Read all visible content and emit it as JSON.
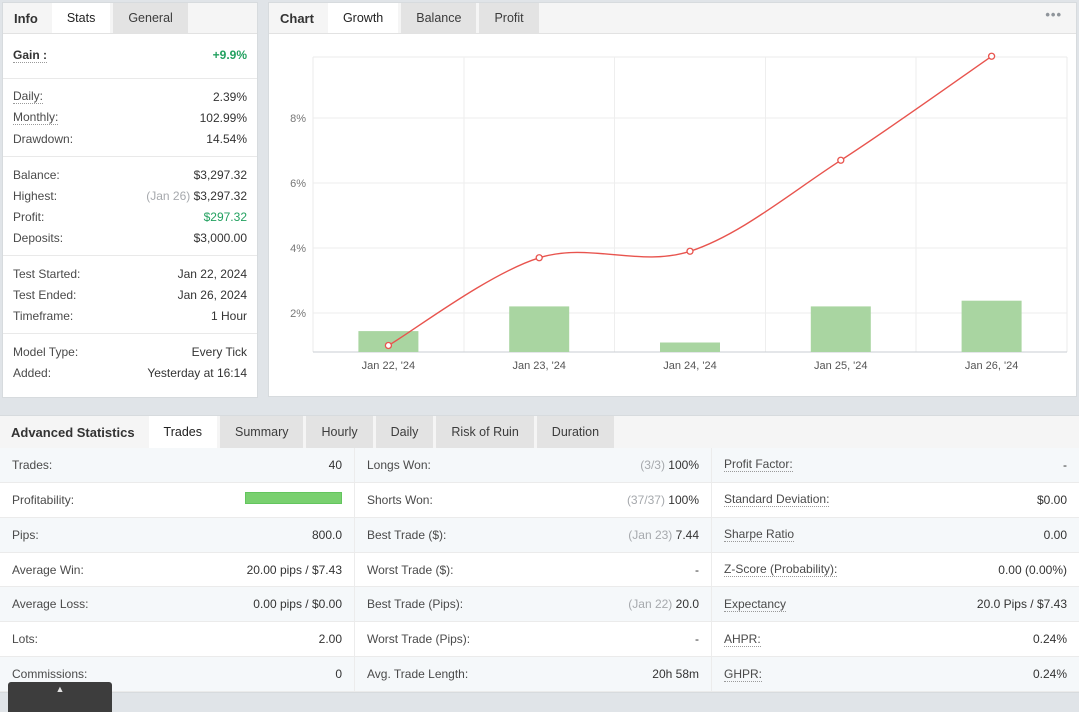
{
  "colors": {
    "green": "#23a160",
    "red_line": "#e8544e",
    "bar_green": "#a9d5a1",
    "profit_bar": "#79d06f"
  },
  "info_panel": {
    "section_label": "Info",
    "tabs": [
      {
        "label": "Stats",
        "active": true
      },
      {
        "label": "General",
        "active": false
      }
    ],
    "groups": [
      [
        {
          "label": "Gain :",
          "value": "+9.9%",
          "dotted": true,
          "green": true,
          "bold": true
        }
      ],
      [
        {
          "label": "Daily:",
          "value": "2.39%",
          "dotted": true
        },
        {
          "label": "Monthly:",
          "value": "102.99%",
          "dotted": true
        },
        {
          "label": "Drawdown:",
          "value": "14.54%"
        }
      ],
      [
        {
          "label": "Balance:",
          "value": "$3,297.32"
        },
        {
          "label": "Highest:",
          "prefix": "(Jan 26)",
          "value": "$3,297.32"
        },
        {
          "label": "Profit:",
          "value": "$297.32",
          "green": true
        },
        {
          "label": "Deposits:",
          "value": "$3,000.00"
        }
      ],
      [
        {
          "label": "Test Started:",
          "value": "Jan 22, 2024"
        },
        {
          "label": "Test Ended:",
          "value": "Jan 26, 2024"
        },
        {
          "label": "Timeframe:",
          "value": "1 Hour"
        }
      ],
      [
        {
          "label": "Model Type:",
          "value": "Every Tick"
        },
        {
          "label": "Added:",
          "value": "Yesterday at 16:14"
        }
      ]
    ]
  },
  "chart_panel": {
    "section_label": "Chart",
    "tabs": [
      {
        "label": "Growth",
        "active": true
      },
      {
        "label": "Balance",
        "active": false
      },
      {
        "label": "Profit",
        "active": false
      }
    ]
  },
  "chart_data": {
    "type": "bar+line combo",
    "title": "Growth",
    "x": [
      "Jan 22, '24",
      "Jan 23, '24",
      "Jan 24, '24",
      "Jan 25, '24",
      "Jan 26, '24"
    ],
    "series": [
      {
        "name": "daily-gain-bars",
        "type": "bar",
        "values": [
          1.1,
          2.4,
          0.5,
          2.4,
          2.7
        ]
      },
      {
        "name": "cumulative-growth-line",
        "type": "line",
        "values": [
          1.0,
          3.7,
          3.9,
          6.7,
          9.9
        ]
      }
    ],
    "yticks": [
      "2%",
      "4%",
      "6%",
      "8%"
    ],
    "ytick_values": [
      2,
      4,
      6,
      8
    ],
    "ylim": [
      0.8,
      9.9
    ],
    "grid": true,
    "legend": "none"
  },
  "stats_panel": {
    "section_label": "Advanced Statistics",
    "tabs": [
      {
        "label": "Trades",
        "active": true
      },
      {
        "label": "Summary",
        "active": false
      },
      {
        "label": "Hourly",
        "active": false
      },
      {
        "label": "Daily",
        "active": false
      },
      {
        "label": "Risk of Ruin",
        "active": false
      },
      {
        "label": "Duration",
        "active": false
      }
    ],
    "rows": [
      [
        {
          "label": "Trades:",
          "value": "40"
        },
        {
          "label": "Longs Won:",
          "prefix": "(3/3)",
          "value": "100%"
        },
        {
          "label": "Profit Factor:",
          "dotted": true,
          "value": "-"
        }
      ],
      [
        {
          "label": "Profitability:",
          "bar": true
        },
        {
          "label": "Shorts Won:",
          "prefix": "(37/37)",
          "value": "100%"
        },
        {
          "label": "Standard Deviation:",
          "dotted": true,
          "value": "$0.00"
        }
      ],
      [
        {
          "label": "Pips:",
          "value": "800.0"
        },
        {
          "label": "Best Trade ($):",
          "prefix": "(Jan 23)",
          "value": "7.44"
        },
        {
          "label": "Sharpe Ratio",
          "dotted": true,
          "value": "0.00"
        }
      ],
      [
        {
          "label": "Average Win:",
          "value": "20.00 pips / $7.43"
        },
        {
          "label": "Worst Trade ($):",
          "value": "-"
        },
        {
          "label": "Z-Score (Probability):",
          "dotted": true,
          "value": "0.00 (0.00%)"
        }
      ],
      [
        {
          "label": "Average Loss:",
          "value": "0.00 pips / $0.00"
        },
        {
          "label": "Best Trade (Pips):",
          "prefix": "(Jan 22)",
          "value": "20.0"
        },
        {
          "label": "Expectancy",
          "dotted": true,
          "value": "20.0 Pips / $7.43"
        }
      ],
      [
        {
          "label": "Lots:",
          "value": "2.00"
        },
        {
          "label": "Worst Trade (Pips):",
          "value": "-"
        },
        {
          "label": "AHPR:",
          "dotted": true,
          "value": "0.24%"
        }
      ],
      [
        {
          "label": "Commissions:",
          "value": "0"
        },
        {
          "label": "Avg. Trade Length:",
          "value": "20h 58m"
        },
        {
          "label": "GHPR:",
          "dotted": true,
          "value": "0.24%"
        }
      ]
    ]
  },
  "misc": {
    "ellipsis": "•••",
    "scroll_top_arrow": "▲"
  }
}
